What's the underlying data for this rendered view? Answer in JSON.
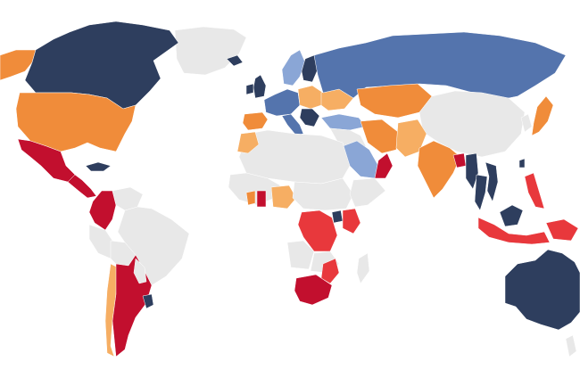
{
  "map": {
    "palette": {
      "no_data": "#e8e8e8",
      "dark_navy": "#2e3e5e",
      "medium_blue": "#5474ad",
      "light_blue": "#8aa6d6",
      "orange": "#f08c3a",
      "light_orange": "#f6ae63",
      "red": "#e8383c",
      "dark_red": "#c20f2e"
    },
    "regions": [
      {
        "name": "greenland",
        "category": "no_data"
      },
      {
        "name": "canada",
        "category": "dark_navy"
      },
      {
        "name": "alaska",
        "category": "orange"
      },
      {
        "name": "usa",
        "category": "orange"
      },
      {
        "name": "mexico",
        "category": "dark_red"
      },
      {
        "name": "central-america",
        "category": "dark_red"
      },
      {
        "name": "cuba",
        "category": "dark_navy"
      },
      {
        "name": "colombia",
        "category": "dark_red"
      },
      {
        "name": "venezuela",
        "category": "no_data"
      },
      {
        "name": "brazil",
        "category": "no_data"
      },
      {
        "name": "peru",
        "category": "no_data"
      },
      {
        "name": "bolivia",
        "category": "no_data"
      },
      {
        "name": "paraguay",
        "category": "no_data"
      },
      {
        "name": "argentina",
        "category": "dark_red"
      },
      {
        "name": "chile",
        "category": "light_orange"
      },
      {
        "name": "uruguay",
        "category": "dark_navy"
      },
      {
        "name": "iceland",
        "category": "dark_navy"
      },
      {
        "name": "uk",
        "category": "dark_navy"
      },
      {
        "name": "ireland",
        "category": "dark_navy"
      },
      {
        "name": "scandinavia",
        "category": "light_blue"
      },
      {
        "name": "finland",
        "category": "dark_navy"
      },
      {
        "name": "western-europe",
        "category": "medium_blue"
      },
      {
        "name": "iberia",
        "category": "orange"
      },
      {
        "name": "central-europe",
        "category": "light_orange"
      },
      {
        "name": "balkans",
        "category": "dark_navy"
      },
      {
        "name": "italy",
        "category": "medium_blue"
      },
      {
        "name": "russia",
        "category": "medium_blue"
      },
      {
        "name": "kazakhstan",
        "category": "orange"
      },
      {
        "name": "ukraine",
        "category": "light_orange"
      },
      {
        "name": "turkey",
        "category": "light_blue"
      },
      {
        "name": "mongolia-china",
        "category": "no_data"
      },
      {
        "name": "japan",
        "category": "orange"
      },
      {
        "name": "korea",
        "category": "no_data"
      },
      {
        "name": "north-africa",
        "category": "no_data"
      },
      {
        "name": "morocco",
        "category": "light_orange"
      },
      {
        "name": "middle-east",
        "category": "no_data"
      },
      {
        "name": "saudi-arabia",
        "category": "light_blue"
      },
      {
        "name": "oman",
        "category": "dark_red"
      },
      {
        "name": "iran",
        "category": "orange"
      },
      {
        "name": "pakistan-afghanistan",
        "category": "light_orange"
      },
      {
        "name": "india",
        "category": "orange"
      },
      {
        "name": "bangladesh",
        "category": "dark_red"
      },
      {
        "name": "myanmar",
        "category": "dark_navy"
      },
      {
        "name": "thailand",
        "category": "dark_navy"
      },
      {
        "name": "vietnam",
        "category": "dark_navy"
      },
      {
        "name": "malaysia",
        "category": "dark_navy"
      },
      {
        "name": "indonesia",
        "category": "red"
      },
      {
        "name": "philippines",
        "category": "red"
      },
      {
        "name": "taiwan",
        "category": "dark_navy"
      },
      {
        "name": "west-africa",
        "category": "no_data"
      },
      {
        "name": "ghana",
        "category": "dark_red"
      },
      {
        "name": "nigeria",
        "category": "light_orange"
      },
      {
        "name": "ivory-coast",
        "category": "orange"
      },
      {
        "name": "central-africa",
        "category": "no_data"
      },
      {
        "name": "dr-congo",
        "category": "red"
      },
      {
        "name": "rwanda",
        "category": "dark_navy"
      },
      {
        "name": "kenya-uganda",
        "category": "red"
      },
      {
        "name": "east-africa",
        "category": "no_data"
      },
      {
        "name": "angola",
        "category": "no_data"
      },
      {
        "name": "zambia",
        "category": "no_data"
      },
      {
        "name": "mozambique",
        "category": "red"
      },
      {
        "name": "south-africa",
        "category": "dark_red"
      },
      {
        "name": "madagascar",
        "category": "no_data"
      },
      {
        "name": "australia",
        "category": "dark_navy"
      },
      {
        "name": "new-zealand",
        "category": "no_data"
      },
      {
        "name": "papua",
        "category": "red"
      }
    ]
  }
}
